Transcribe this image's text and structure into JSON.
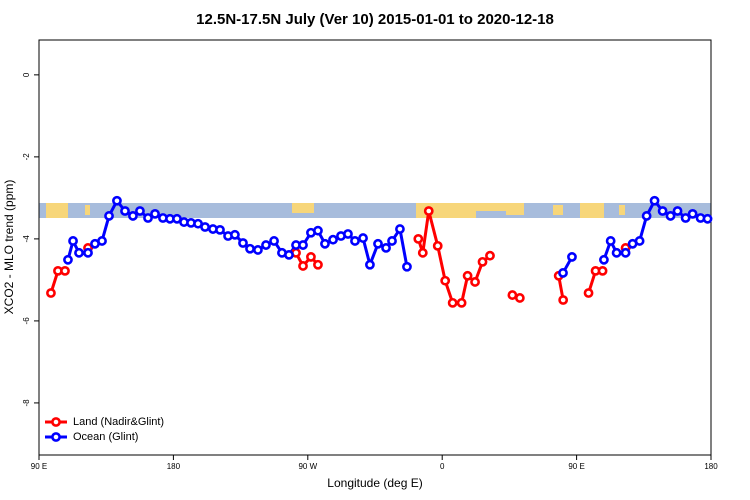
{
  "chart_data": {
    "type": "line",
    "title": "12.5N-17.5N July (Ver 10)   2015-01-01 to 2020-12-18",
    "x_label": "Longitude (deg E)",
    "y_label": "XCO2 - MLO trend (ppm)",
    "xlim": [
      90,
      540
    ],
    "xticks": [
      {
        "value": 90,
        "label": "90 E"
      },
      {
        "value": 180,
        "label": "180"
      },
      {
        "value": 270,
        "label": "90 W"
      },
      {
        "value": 360,
        "label": "0"
      },
      {
        "value": 450,
        "label": "90 E"
      },
      {
        "value": 540,
        "label": "180"
      }
    ],
    "ylim": [
      -9.27,
      0.85
    ],
    "yticks": [
      0,
      -2,
      -4,
      -6,
      -8
    ],
    "legend": "bottom-left",
    "series": [
      {
        "name": "Land (Nadir&Glint)",
        "color": "#ff0000",
        "x": [
          98.0,
          102.7,
          107.4,
          null,
          122.8,
          null,
          262.1,
          266.8,
          272.1,
          276.8,
          null,
          344.0,
          347.0,
          351.0,
          357.0,
          362.0,
          367.0,
          373.0,
          377.0,
          382.0,
          387.0,
          392.0,
          null,
          407.0,
          412.0,
          null,
          438.0,
          441.0,
          null,
          458.0,
          462.7,
          467.4,
          null,
          482.8
        ],
        "values": [
          -5.32,
          -4.78,
          -4.78,
          null,
          -4.22,
          null,
          -4.34,
          -4.66,
          -4.44,
          -4.63,
          null,
          -4.0,
          -4.34,
          -3.32,
          -4.17,
          -5.02,
          -5.56,
          -5.56,
          -4.9,
          -5.05,
          -4.56,
          -4.41,
          null,
          -5.37,
          -5.44,
          null,
          -4.9,
          -5.49,
          null,
          -5.32,
          -4.78,
          -4.78,
          null,
          -4.22
        ]
      },
      {
        "name": "Ocean (Glint)",
        "color": "#0000ff",
        "x": [
          109.4,
          112.8,
          116.8,
          122.8,
          127.5,
          132.2,
          136.9,
          142.2,
          147.6,
          152.9,
          157.6,
          163.0,
          167.7,
          173.0,
          177.7,
          182.4,
          187.1,
          191.8,
          196.5,
          201.2,
          206.5,
          211.2,
          216.6,
          221.2,
          226.6,
          231.3,
          236.6,
          242.0,
          247.4,
          252.7,
          257.4,
          262.1,
          266.8,
          272.1,
          276.8,
          281.5,
          286.9,
          292.2,
          296.9,
          301.6,
          307.0,
          311.6,
          317.0,
          322.4,
          326.4,
          331.7,
          336.4,
          null,
          440.9,
          446.9,
          null,
          468.3,
          472.8,
          476.8,
          482.8,
          487.5,
          492.2,
          496.9,
          502.2,
          507.6,
          512.9,
          517.6,
          523.0,
          527.7,
          533.0,
          537.7
        ],
        "values": [
          -4.51,
          -4.05,
          -4.34,
          -4.34,
          -4.12,
          -4.05,
          -3.44,
          -3.07,
          -3.32,
          -3.44,
          -3.32,
          -3.49,
          -3.39,
          -3.49,
          -3.51,
          -3.51,
          -3.59,
          -3.61,
          -3.63,
          -3.71,
          -3.76,
          -3.78,
          -3.93,
          -3.9,
          -4.1,
          -4.24,
          -4.27,
          -4.15,
          -4.05,
          -4.34,
          -4.39,
          -4.15,
          -4.15,
          -3.85,
          -3.8,
          -4.12,
          -4.02,
          -3.93,
          -3.88,
          -4.05,
          -3.98,
          -4.63,
          -4.12,
          -4.22,
          -4.05,
          -3.76,
          -4.68,
          null,
          -4.83,
          -4.44,
          null,
          -4.51,
          -4.05,
          -4.34,
          -4.34,
          -4.12,
          -4.05,
          -3.44,
          -3.07,
          -3.32,
          -3.44,
          -3.32,
          -3.49,
          -3.39,
          -3.49,
          -3.51
        ]
      }
    ]
  }
}
